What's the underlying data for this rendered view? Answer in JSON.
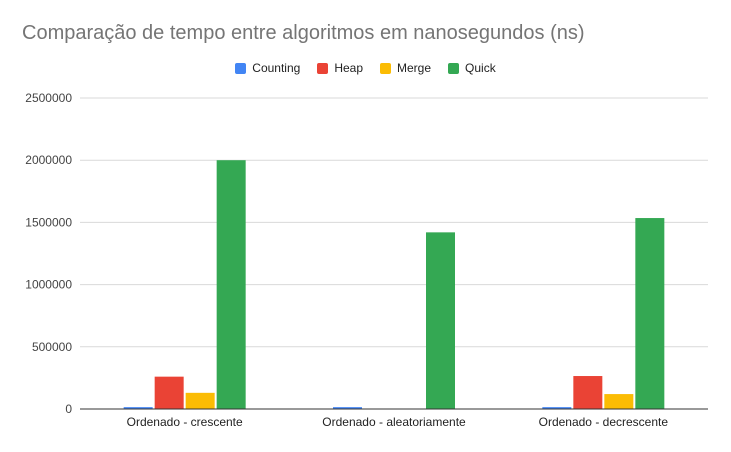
{
  "chart_data": {
    "type": "bar",
    "title": "Comparação de tempo entre algoritmos em nanosegundos (ns)",
    "categories": [
      "Ordenado - crescente",
      "Ordenado - aleatoriamente",
      "Ordenado - decrescente"
    ],
    "series": [
      {
        "name": "Counting",
        "color": "#4285f4",
        "values": [
          15000,
          15000,
          15000
        ]
      },
      {
        "name": "Heap",
        "color": "#ea4335",
        "values": [
          260000,
          0,
          265000
        ]
      },
      {
        "name": "Merge",
        "color": "#fbbc04",
        "values": [
          130000,
          0,
          120000
        ]
      },
      {
        "name": "Quick",
        "color": "#34a853",
        "values": [
          2000000,
          1420000,
          1535000
        ]
      }
    ],
    "yticks": [
      "0",
      "500000",
      "1000000",
      "1500000",
      "2000000",
      "2500000"
    ],
    "ylim": [
      0,
      2500000
    ],
    "grid": true,
    "legend_position": "top"
  }
}
